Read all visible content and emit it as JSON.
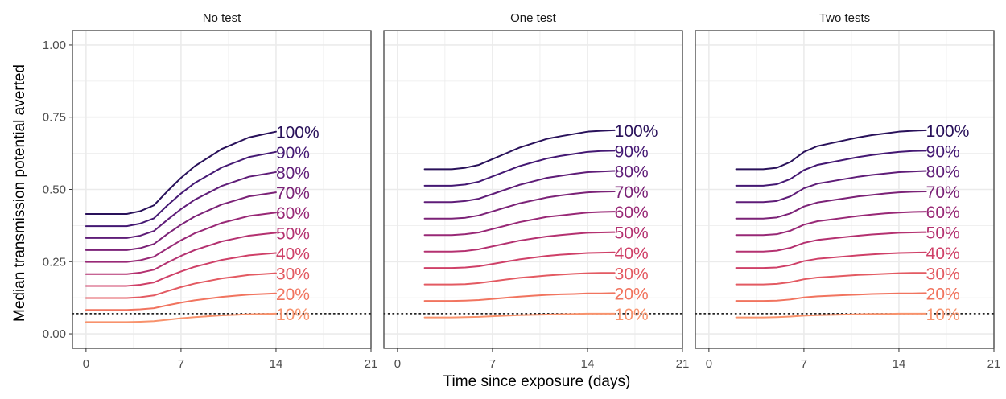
{
  "figure": {
    "ylabel": "Median transmission potential averted",
    "xlabel": "Time since exposure (days)"
  },
  "colors": {
    "grid": "#ebebeb",
    "panel_border": "#333333",
    "tick_text": "#4d4d4d",
    "reference_line": "#000000"
  },
  "chart_data": {
    "type": "line",
    "facets": [
      "No test",
      "One test",
      "Two tests"
    ],
    "xlim": [
      -1,
      21
    ],
    "ylim": [
      -0.05,
      1.05
    ],
    "x_ticks": [
      0,
      7,
      14,
      21
    ],
    "y_ticks": [
      0,
      0.25,
      0.5,
      0.75,
      1
    ],
    "y_tick_labels": [
      "0.00",
      "0.25",
      "0.50",
      "0.75",
      "1.00"
    ],
    "reference_line_y": 0.07,
    "series_labels": [
      "10%",
      "20%",
      "30%",
      "40%",
      "50%",
      "60%",
      "70%",
      "80%",
      "90%",
      "100%"
    ],
    "series_colors": [
      "#f8926c",
      "#f1745f",
      "#e35a62",
      "#cf4068",
      "#b43170",
      "#982876",
      "#7b2277",
      "#5f1d78",
      "#441873",
      "#29115a"
    ],
    "panels": [
      {
        "name": "No test",
        "x": [
          0,
          1,
          2,
          3,
          4,
          5,
          6,
          7,
          8,
          9,
          10,
          11,
          12,
          13,
          14
        ],
        "series": [
          {
            "name": "10%",
            "values": [
              0.041,
              0.041,
              0.041,
              0.041,
              0.042,
              0.044,
              0.049,
              0.054,
              0.058,
              0.061,
              0.064,
              0.066,
              0.068,
              0.069,
              0.07
            ]
          },
          {
            "name": "20%",
            "values": [
              0.083,
              0.083,
              0.083,
              0.083,
              0.085,
              0.089,
              0.099,
              0.108,
              0.116,
              0.122,
              0.128,
              0.132,
              0.136,
              0.138,
              0.14
            ]
          },
          {
            "name": "30%",
            "values": [
              0.124,
              0.124,
              0.124,
              0.124,
              0.127,
              0.133,
              0.148,
              0.162,
              0.174,
              0.183,
              0.192,
              0.198,
              0.204,
              0.207,
              0.21
            ]
          },
          {
            "name": "40%",
            "values": [
              0.166,
              0.166,
              0.166,
              0.166,
              0.17,
              0.178,
              0.198,
              0.216,
              0.232,
              0.244,
              0.256,
              0.264,
              0.272,
              0.276,
              0.28
            ]
          },
          {
            "name": "50%",
            "values": [
              0.207,
              0.207,
              0.207,
              0.207,
              0.212,
              0.222,
              0.247,
              0.27,
              0.29,
              0.305,
              0.32,
              0.33,
              0.34,
              0.345,
              0.35
            ]
          },
          {
            "name": "60%",
            "values": [
              0.249,
              0.249,
              0.249,
              0.249,
              0.255,
              0.267,
              0.296,
              0.324,
              0.348,
              0.366,
              0.384,
              0.396,
              0.408,
              0.414,
              0.42
            ]
          },
          {
            "name": "70%",
            "values": [
              0.29,
              0.29,
              0.29,
              0.29,
              0.297,
              0.311,
              0.346,
              0.378,
              0.406,
              0.427,
              0.448,
              0.462,
              0.476,
              0.483,
              0.49
            ]
          },
          {
            "name": "80%",
            "values": [
              0.332,
              0.332,
              0.332,
              0.332,
              0.34,
              0.356,
              0.395,
              0.432,
              0.464,
              0.488,
              0.512,
              0.528,
              0.544,
              0.552,
              0.56
            ]
          },
          {
            "name": "90%",
            "values": [
              0.373,
              0.373,
              0.373,
              0.373,
              0.382,
              0.4,
              0.445,
              0.486,
              0.522,
              0.549,
              0.576,
              0.594,
              0.612,
              0.621,
              0.63
            ]
          },
          {
            "name": "100%",
            "values": [
              0.415,
              0.415,
              0.415,
              0.415,
              0.425,
              0.445,
              0.494,
              0.54,
              0.58,
              0.61,
              0.64,
              0.66,
              0.68,
              0.69,
              0.7
            ]
          }
        ]
      },
      {
        "name": "One test",
        "x": [
          2,
          3,
          4,
          5,
          6,
          7,
          8,
          9,
          10,
          11,
          12,
          13,
          14,
          15,
          16
        ],
        "series": [
          {
            "name": "10%",
            "values": [
              0.057,
              0.057,
              0.057,
              0.058,
              0.059,
              0.061,
              0.063,
              0.065,
              0.066,
              0.067,
              0.068,
              0.069,
              0.07,
              0.07,
              0.07
            ]
          },
          {
            "name": "20%",
            "values": [
              0.114,
              0.114,
              0.114,
              0.115,
              0.117,
              0.121,
              0.125,
              0.129,
              0.132,
              0.135,
              0.137,
              0.138,
              0.14,
              0.14,
              0.141
            ]
          },
          {
            "name": "30%",
            "values": [
              0.171,
              0.171,
              0.171,
              0.172,
              0.176,
              0.182,
              0.188,
              0.194,
              0.198,
              0.202,
              0.205,
              0.208,
              0.21,
              0.211,
              0.211
            ]
          },
          {
            "name": "40%",
            "values": [
              0.228,
              0.228,
              0.228,
              0.23,
              0.234,
              0.242,
              0.25,
              0.258,
              0.264,
              0.27,
              0.274,
              0.277,
              0.28,
              0.281,
              0.282
            ]
          },
          {
            "name": "50%",
            "values": [
              0.285,
              0.285,
              0.285,
              0.287,
              0.293,
              0.303,
              0.313,
              0.323,
              0.33,
              0.337,
              0.342,
              0.346,
              0.35,
              0.351,
              0.352
            ]
          },
          {
            "name": "60%",
            "values": [
              0.342,
              0.342,
              0.342,
              0.345,
              0.351,
              0.363,
              0.375,
              0.387,
              0.396,
              0.405,
              0.41,
              0.415,
              0.42,
              0.422,
              0.423
            ]
          },
          {
            "name": "70%",
            "values": [
              0.399,
              0.399,
              0.399,
              0.402,
              0.41,
              0.424,
              0.438,
              0.452,
              0.462,
              0.472,
              0.479,
              0.485,
              0.49,
              0.492,
              0.493
            ]
          },
          {
            "name": "80%",
            "values": [
              0.456,
              0.456,
              0.456,
              0.46,
              0.468,
              0.484,
              0.5,
              0.516,
              0.528,
              0.54,
              0.547,
              0.554,
              0.56,
              0.562,
              0.564
            ]
          },
          {
            "name": "90%",
            "values": [
              0.513,
              0.513,
              0.513,
              0.517,
              0.527,
              0.545,
              0.563,
              0.581,
              0.594,
              0.607,
              0.616,
              0.623,
              0.63,
              0.633,
              0.634
            ]
          },
          {
            "name": "100%",
            "values": [
              0.57,
              0.57,
              0.57,
              0.575,
              0.585,
              0.605,
              0.625,
              0.645,
              0.66,
              0.675,
              0.684,
              0.692,
              0.7,
              0.703,
              0.705
            ]
          }
        ]
      },
      {
        "name": "Two tests",
        "x": [
          2,
          3,
          4,
          5,
          6,
          7,
          8,
          9,
          10,
          11,
          12,
          13,
          14,
          15,
          16
        ],
        "series": [
          {
            "name": "10%",
            "values": [
              0.057,
              0.057,
              0.057,
              0.058,
              0.06,
              0.063,
              0.065,
              0.066,
              0.067,
              0.068,
              0.069,
              0.069,
              0.07,
              0.07,
              0.07
            ]
          },
          {
            "name": "20%",
            "values": [
              0.114,
              0.114,
              0.114,
              0.115,
              0.119,
              0.126,
              0.13,
              0.132,
              0.134,
              0.136,
              0.138,
              0.139,
              0.14,
              0.14,
              0.141
            ]
          },
          {
            "name": "30%",
            "values": [
              0.171,
              0.171,
              0.171,
              0.173,
              0.179,
              0.189,
              0.195,
              0.198,
              0.201,
              0.204,
              0.206,
              0.208,
              0.21,
              0.211,
              0.211
            ]
          },
          {
            "name": "40%",
            "values": [
              0.228,
              0.228,
              0.228,
              0.23,
              0.238,
              0.252,
              0.26,
              0.264,
              0.268,
              0.272,
              0.275,
              0.278,
              0.28,
              0.281,
              0.282
            ]
          },
          {
            "name": "50%",
            "values": [
              0.285,
              0.285,
              0.285,
              0.288,
              0.298,
              0.315,
              0.325,
              0.33,
              0.335,
              0.34,
              0.344,
              0.347,
              0.35,
              0.351,
              0.352
            ]
          },
          {
            "name": "60%",
            "values": [
              0.342,
              0.342,
              0.342,
              0.345,
              0.357,
              0.378,
              0.39,
              0.396,
              0.402,
              0.408,
              0.413,
              0.417,
              0.42,
              0.422,
              0.423
            ]
          },
          {
            "name": "70%",
            "values": [
              0.399,
              0.399,
              0.399,
              0.403,
              0.417,
              0.441,
              0.455,
              0.462,
              0.469,
              0.476,
              0.481,
              0.486,
              0.49,
              0.492,
              0.493
            ]
          },
          {
            "name": "80%",
            "values": [
              0.456,
              0.456,
              0.456,
              0.46,
              0.476,
              0.504,
              0.52,
              0.528,
              0.536,
              0.544,
              0.55,
              0.555,
              0.56,
              0.562,
              0.564
            ]
          },
          {
            "name": "90%",
            "values": [
              0.513,
              0.513,
              0.513,
              0.518,
              0.536,
              0.567,
              0.585,
              0.594,
              0.603,
              0.612,
              0.619,
              0.625,
              0.63,
              0.633,
              0.634
            ]
          },
          {
            "name": "100%",
            "values": [
              0.57,
              0.57,
              0.57,
              0.575,
              0.595,
              0.63,
              0.65,
              0.66,
              0.67,
              0.68,
              0.688,
              0.694,
              0.7,
              0.703,
              0.705
            ]
          }
        ]
      }
    ]
  }
}
